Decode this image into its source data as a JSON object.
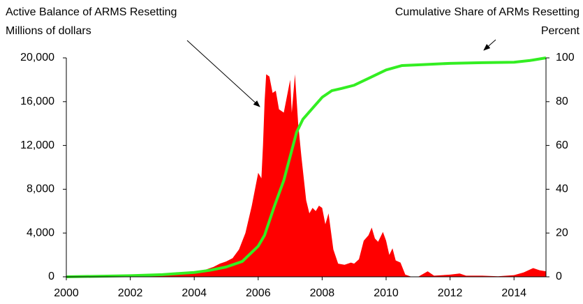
{
  "chart_data": {
    "type": "area_line",
    "annotations": [
      {
        "lines": [
          "Active Balance of ARMS Resetting",
          "Millions of dollars"
        ]
      },
      {
        "lines": [
          "Cumulative Share of ARMs Resetting",
          "Percent"
        ]
      }
    ],
    "xlim": [
      2000,
      2015
    ],
    "xticks": [
      2000,
      2002,
      2004,
      2006,
      2008,
      2010,
      2012,
      2014
    ],
    "ylim": [
      0,
      20000
    ],
    "yticks": [
      0,
      {
        "value": 4000,
        "label": "4,000"
      },
      {
        "value": 8000,
        "label": "8,000"
      },
      {
        "value": 12000,
        "label": "12,000"
      },
      {
        "value": 16000,
        "label": "16,000"
      },
      {
        "value": 20000,
        "label": "20,000"
      }
    ],
    "y2lim": [
      0,
      100
    ],
    "y2ticks": [
      0,
      20,
      40,
      60,
      80,
      100
    ],
    "series": [
      {
        "kind": "area",
        "color": "#ff0000",
        "axis": "y",
        "x": [
          2000,
          2001,
          2002,
          2002.5,
          2003,
          2003.5,
          2004,
          2004.3,
          2004.6,
          2004.8,
          2005,
          2005.2,
          2005.4,
          2005.6,
          2005.8,
          2005.9,
          2006.0,
          2006.1,
          2006.15,
          2006.2,
          2006.25,
          2006.35,
          2006.45,
          2006.55,
          2006.65,
          2006.8,
          2006.9,
          2007.0,
          2007.05,
          2007.15,
          2007.25,
          2007.35,
          2007.5,
          2007.6,
          2007.7,
          2007.8,
          2007.9,
          2008.0,
          2008.1,
          2008.2,
          2008.35,
          2008.5,
          2008.7,
          2008.9,
          2009.0,
          2009.15,
          2009.3,
          2009.45,
          2009.55,
          2009.65,
          2009.75,
          2009.9,
          2010.0,
          2010.1,
          2010.2,
          2010.3,
          2010.45,
          2010.6,
          2010.8,
          2011.0,
          2011.3,
          2011.5,
          2012,
          2012.3,
          2012.5,
          2013,
          2013.5,
          2014,
          2014.3,
          2014.6,
          2014.8,
          2015
        ],
        "values": [
          0,
          0,
          100,
          200,
          250,
          350,
          400,
          600,
          900,
          1200,
          1400,
          1700,
          2500,
          4000,
          6500,
          8000,
          9500,
          9000,
          12000,
          16000,
          18500,
          18300,
          16800,
          17000,
          15300,
          15000,
          16500,
          18000,
          15000,
          18500,
          14000,
          11000,
          7000,
          5800,
          6300,
          6000,
          6500,
          6300,
          4800,
          5800,
          2500,
          1200,
          1100,
          1300,
          1200,
          1600,
          3300,
          3800,
          4500,
          3500,
          3200,
          4100,
          3300,
          2000,
          2600,
          1500,
          1300,
          200,
          0,
          0,
          500,
          100,
          200,
          300,
          100,
          100,
          50,
          150,
          400,
          800,
          600,
          500
        ]
      },
      {
        "kind": "line",
        "color": "#33ee22",
        "axis": "y2",
        "x": [
          2000,
          2002,
          2003,
          2004,
          2004.5,
          2005,
          2005.5,
          2006,
          2006.2,
          2006.5,
          2006.8,
          2007,
          2007.2,
          2007.4,
          2007.7,
          2008,
          2008.3,
          2008.6,
          2009,
          2009.5,
          2010,
          2010.5,
          2011,
          2012,
          2013,
          2014,
          2014.5,
          2015
        ],
        "values": [
          0,
          0.5,
          1,
          2,
          3,
          4.5,
          7,
          14,
          19,
          32,
          44,
          55,
          66,
          72,
          77,
          82,
          85,
          86,
          87.5,
          91,
          94.5,
          96.5,
          96.8,
          97.5,
          97.8,
          98,
          98.8,
          100
        ]
      }
    ]
  }
}
